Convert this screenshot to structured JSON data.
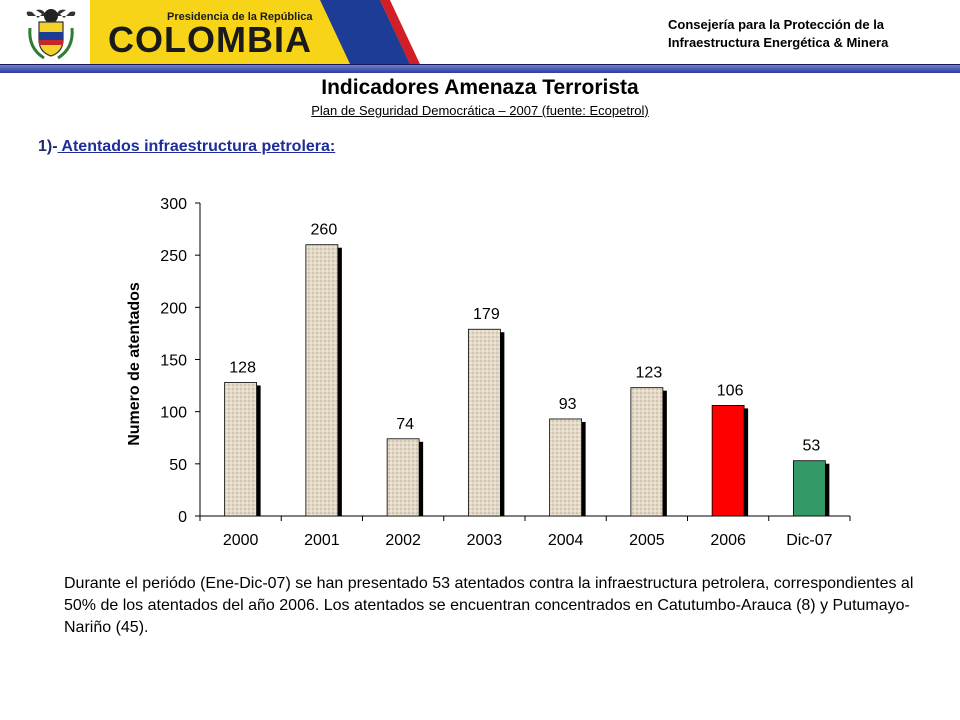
{
  "header": {
    "logo_small": "Presidencia de la República",
    "logo_big": "COLOMBIA",
    "org_line1": "Consejería para la Protección de la",
    "org_line2": "Infraestructura Energética & Minera",
    "flag_colors": [
      "#f7d418",
      "#1d3c96",
      "#d21e26"
    ]
  },
  "title": "Indicadores  Amenaza Terrorista",
  "subtitle": "Plan de Seguridad Democrática – 2007 (fuente: Ecopetrol)",
  "section": {
    "number": "1)-",
    "label": " Atentados infraestructura petrolera:"
  },
  "chart_data": {
    "type": "bar",
    "categories": [
      "2000",
      "2001",
      "2002",
      "2003",
      "2004",
      "2005",
      "2006",
      "Dic-07"
    ],
    "values": [
      128,
      260,
      74,
      179,
      93,
      123,
      106,
      53
    ],
    "ylabel": "Numero de atentados",
    "ylim": [
      0,
      300
    ],
    "yticks": [
      0,
      50,
      100,
      150,
      200,
      250,
      300
    ],
    "bar_colors": [
      "#e0d6c3",
      "#e0d6c3",
      "#e0d6c3",
      "#e0d6c3",
      "#e0d6c3",
      "#e0d6c3",
      "#ff0000",
      "#339966"
    ]
  },
  "paragraph": "Durante el periódo (Ene-Dic-07) se han presentado 53 atentados contra la infraestructura petrolera, correspondientes al 50% de los atentados del año 2006. Los atentados se encuentran concentrados en Catutumbo-Arauca (8) y Putumayo-Nariño (45)."
}
